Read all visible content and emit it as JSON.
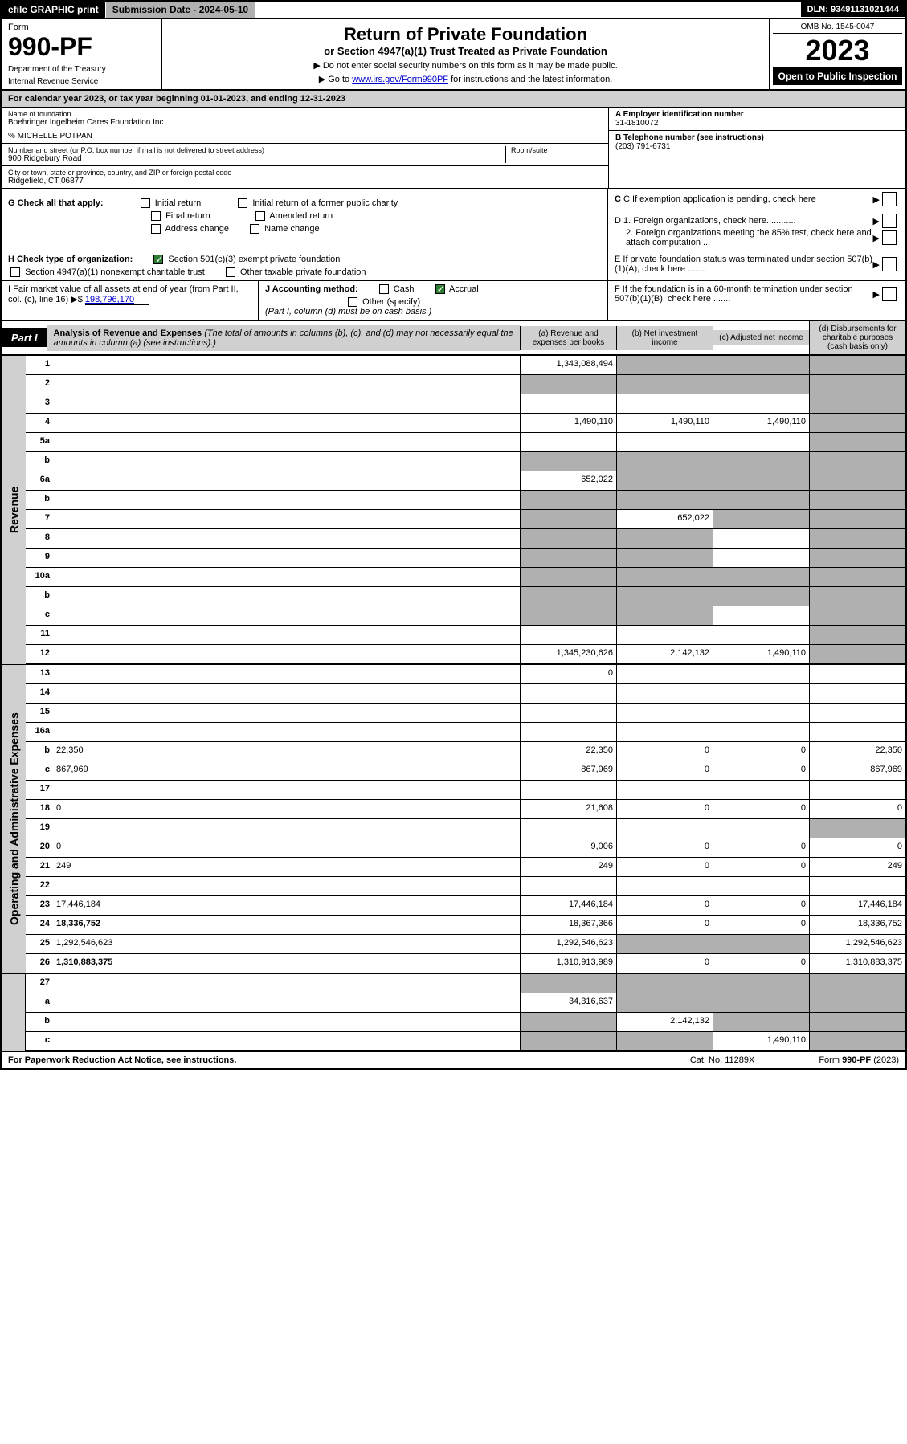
{
  "topbar": {
    "efile": "efile GRAPHIC print",
    "submission_label": "Submission Date - 2024-05-10",
    "dln": "DLN: 93491131021444"
  },
  "header": {
    "form_label": "Form",
    "form_number": "990-PF",
    "dept1": "Department of the Treasury",
    "dept2": "Internal Revenue Service",
    "title": "Return of Private Foundation",
    "subtitle": "or Section 4947(a)(1) Trust Treated as Private Foundation",
    "note1": "▶ Do not enter social security numbers on this form as it may be made public.",
    "note2_pre": "▶ Go to ",
    "note2_link": "www.irs.gov/Form990PF",
    "note2_post": " for instructions and the latest information.",
    "omb": "OMB No. 1545-0047",
    "year": "2023",
    "open_public": "Open to Public Inspection"
  },
  "calendar": {
    "text_pre": "For calendar year 2023, or tax year beginning ",
    "begin": "01-01-2023",
    "text_mid": ", and ending ",
    "end": "12-31-2023"
  },
  "info": {
    "name_lbl": "Name of foundation",
    "name": "Boehringer Ingelheim Cares Foundation Inc",
    "co_lbl": "% MICHELLE POTPAN",
    "addr_lbl": "Number and street (or P.O. box number if mail is not delivered to street address)",
    "addr": "900 Ridgebury Road",
    "room_lbl": "Room/suite",
    "city_lbl": "City or town, state or province, country, and ZIP or foreign postal code",
    "city": "Ridgefield, CT  06877",
    "ein_lbl": "A Employer identification number",
    "ein": "31-1810072",
    "phone_lbl": "B Telephone number (see instructions)",
    "phone": "(203) 791-6731",
    "c_lbl": "C If exemption application is pending, check here",
    "d1_lbl": "D 1. Foreign organizations, check here............",
    "d2_lbl": "2. Foreign organizations meeting the 85% test, check here and attach computation ...",
    "e_lbl": "E  If private foundation status was terminated under section 507(b)(1)(A), check here .......",
    "f_lbl": "F  If the foundation is in a 60-month termination under section 507(b)(1)(B), check here .......",
    "g_lbl": "G Check all that apply:",
    "g_opts": [
      "Initial return",
      "Final return",
      "Address change",
      "Initial return of a former public charity",
      "Amended return",
      "Name change"
    ],
    "h_lbl": "H Check type of organization:",
    "h_opt1": "Section 501(c)(3) exempt private foundation",
    "h_opt2": "Section 4947(a)(1) nonexempt charitable trust",
    "h_opt3": "Other taxable private foundation",
    "i_lbl": "I Fair market value of all assets at end of year (from Part II, col. (c), line 16) ▶$ ",
    "i_val": "198,796,170",
    "j_lbl": "J Accounting method:",
    "j_opts": [
      "Cash",
      "Accrual"
    ],
    "j_other": "Other (specify)",
    "j_note": "(Part I, column (d) must be on cash basis.)"
  },
  "part1": {
    "label": "Part I",
    "title": "Analysis of Revenue and Expenses",
    "title_note": " (The total of amounts in columns (b), (c), and (d) may not necessarily equal the amounts in column (a) (see instructions).)",
    "col_a": "(a)  Revenue and expenses per books",
    "col_b": "(b)  Net investment income",
    "col_c": "(c)  Adjusted net income",
    "col_d": "(d)  Disbursements for charitable purposes (cash basis only)"
  },
  "side_labels": {
    "revenue": "Revenue",
    "expenses": "Operating and Administrative Expenses"
  },
  "rows": [
    {
      "n": "1",
      "d": "",
      "a": "1,343,088,494",
      "b": "",
      "c": "",
      "sb": true,
      "sc": true,
      "sd": true
    },
    {
      "n": "2",
      "d": "",
      "a": "",
      "b": "",
      "c": "",
      "sa": true,
      "sb": true,
      "sc": true,
      "sd": true
    },
    {
      "n": "3",
      "d": "",
      "a": "",
      "b": "",
      "c": "",
      "sd": true
    },
    {
      "n": "4",
      "d": "",
      "a": "1,490,110",
      "b": "1,490,110",
      "c": "1,490,110",
      "sd": true
    },
    {
      "n": "5a",
      "d": "",
      "a": "",
      "b": "",
      "c": "",
      "sd": true
    },
    {
      "n": "b",
      "d": "",
      "a": "",
      "b": "",
      "c": "",
      "sa": true,
      "sb": true,
      "sc": true,
      "sd": true
    },
    {
      "n": "6a",
      "d": "",
      "a": "652,022",
      "b": "",
      "c": "",
      "sb": true,
      "sc": true,
      "sd": true
    },
    {
      "n": "b",
      "d": "",
      "a": "",
      "b": "",
      "c": "",
      "sa": true,
      "sb": true,
      "sc": true,
      "sd": true
    },
    {
      "n": "7",
      "d": "",
      "a": "",
      "b": "652,022",
      "c": "",
      "sa": true,
      "sc": true,
      "sd": true
    },
    {
      "n": "8",
      "d": "",
      "a": "",
      "b": "",
      "c": "",
      "sa": true,
      "sb": true,
      "sd": true
    },
    {
      "n": "9",
      "d": "",
      "a": "",
      "b": "",
      "c": "",
      "sa": true,
      "sb": true,
      "sd": true
    },
    {
      "n": "10a",
      "d": "",
      "a": "",
      "b": "",
      "c": "",
      "sa": true,
      "sb": true,
      "sc": true,
      "sd": true
    },
    {
      "n": "b",
      "d": "",
      "a": "",
      "b": "",
      "c": "",
      "sa": true,
      "sb": true,
      "sc": true,
      "sd": true
    },
    {
      "n": "c",
      "d": "",
      "a": "",
      "b": "",
      "c": "",
      "sa": true,
      "sb": true,
      "sd": true
    },
    {
      "n": "11",
      "d": "",
      "a": "",
      "b": "",
      "c": "",
      "sd": true
    },
    {
      "n": "12",
      "d": "",
      "a": "1,345,230,626",
      "b": "2,142,132",
      "c": "1,490,110",
      "bold": true,
      "sd": true
    }
  ],
  "exp_rows": [
    {
      "n": "13",
      "d": "",
      "a": "0",
      "b": "",
      "c": ""
    },
    {
      "n": "14",
      "d": "",
      "a": "",
      "b": "",
      "c": ""
    },
    {
      "n": "15",
      "d": "",
      "a": "",
      "b": "",
      "c": ""
    },
    {
      "n": "16a",
      "d": "",
      "a": "",
      "b": "",
      "c": ""
    },
    {
      "n": "b",
      "d": "22,350",
      "a": "22,350",
      "b": "0",
      "c": "0"
    },
    {
      "n": "c",
      "d": "867,969",
      "a": "867,969",
      "b": "0",
      "c": "0"
    },
    {
      "n": "17",
      "d": "",
      "a": "",
      "b": "",
      "c": ""
    },
    {
      "n": "18",
      "d": "0",
      "a": "21,608",
      "b": "0",
      "c": "0"
    },
    {
      "n": "19",
      "d": "",
      "a": "",
      "b": "",
      "c": "",
      "sd": true
    },
    {
      "n": "20",
      "d": "0",
      "a": "9,006",
      "b": "0",
      "c": "0"
    },
    {
      "n": "21",
      "d": "249",
      "a": "249",
      "b": "0",
      "c": "0"
    },
    {
      "n": "22",
      "d": "",
      "a": "",
      "b": "",
      "c": ""
    },
    {
      "n": "23",
      "d": "17,446,184",
      "a": "17,446,184",
      "b": "0",
      "c": "0"
    },
    {
      "n": "24",
      "d": "18,336,752",
      "a": "18,367,366",
      "b": "0",
      "c": "0",
      "bold": true
    },
    {
      "n": "25",
      "d": "1,292,546,623",
      "a": "1,292,546,623",
      "b": "",
      "c": "",
      "sb": true,
      "sc": true
    },
    {
      "n": "26",
      "d": "1,310,883,375",
      "a": "1,310,913,989",
      "b": "0",
      "c": "0",
      "bold": true
    }
  ],
  "final_rows": [
    {
      "n": "27",
      "d": "",
      "a": "",
      "b": "",
      "c": "",
      "sa": true,
      "sb": true,
      "sc": true,
      "sd": true
    },
    {
      "n": "a",
      "d": "",
      "a": "34,316,637",
      "b": "",
      "c": "",
      "bold": true,
      "sb": true,
      "sc": true,
      "sd": true
    },
    {
      "n": "b",
      "d": "",
      "a": "",
      "b": "2,142,132",
      "c": "",
      "bold": true,
      "sa": true,
      "sc": true,
      "sd": true
    },
    {
      "n": "c",
      "d": "",
      "a": "",
      "b": "",
      "c": "1,490,110",
      "bold": true,
      "sa": true,
      "sb": true,
      "sd": true
    }
  ],
  "footer": {
    "left": "For Paperwork Reduction Act Notice, see instructions.",
    "mid": "Cat. No. 11289X",
    "right": "Form 990-PF (2023)"
  },
  "colors": {
    "shaded": "#b0b0b0",
    "header_bg": "#d0d0d0",
    "black": "#000000",
    "link": "#0000cc",
    "check_green": "#2e7d32"
  }
}
